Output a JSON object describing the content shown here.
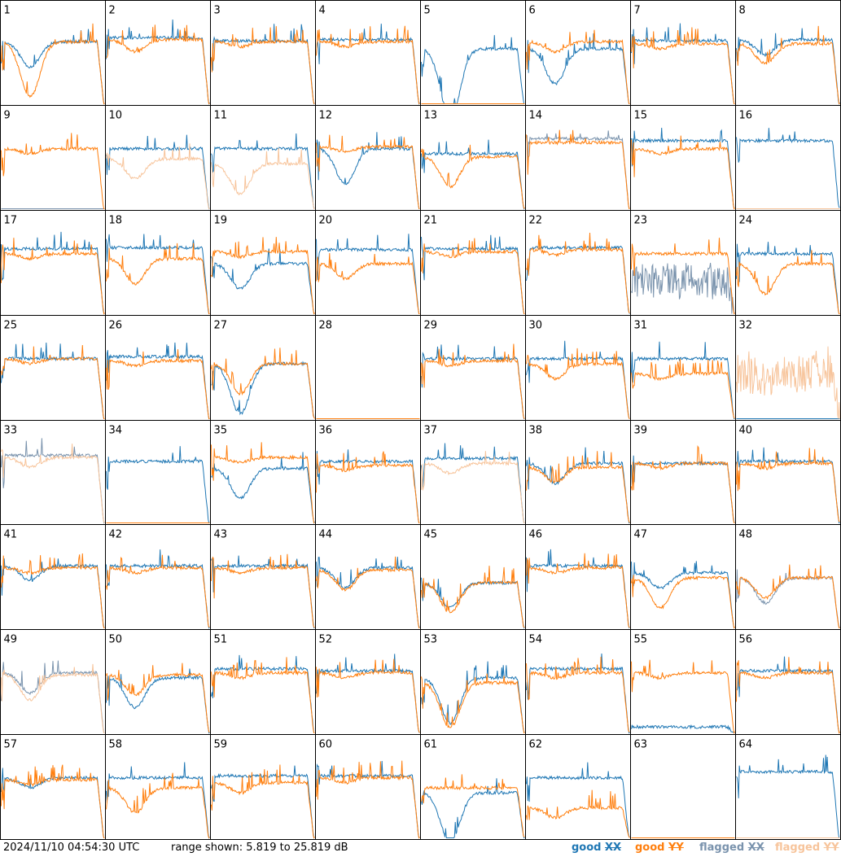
{
  "timestamp": "2024/11/10 04:54:30 UTC",
  "range_text": "range shown: 5.819 to 25.819 dB",
  "legend": [
    {
      "label": "good",
      "pol": "XX",
      "color": "#1f77b4"
    },
    {
      "label": "good",
      "pol": "YY",
      "color": "#ff7f0e"
    },
    {
      "label": "flagged",
      "pol": "XX",
      "color": "#7a93ad"
    },
    {
      "label": "flagged",
      "pol": "YY",
      "color": "#f7c49b"
    }
  ],
  "colors": {
    "good_xx": "#1f77b4",
    "good_yy": "#ff7f0e",
    "flagged_xx": "#7a93ad",
    "flagged_yy": "#f7c49b"
  },
  "chart_data": {
    "type": "line",
    "grid": {
      "rows": 8,
      "cols": 8
    },
    "y_range_db": [
      5.819,
      25.819
    ],
    "series_order": [
      "XX",
      "YY"
    ],
    "panels": [
      {
        "label": "1",
        "xx": {
          "level": 0.62,
          "state": "good",
          "dip": 0.25,
          "spikes": 1
        },
        "yy": {
          "level": 0.62,
          "state": "good",
          "dip": 0.55,
          "spikes": 1
        }
      },
      {
        "label": "2",
        "xx": {
          "level": 0.66,
          "state": "good",
          "dip": 0.0,
          "spikes": 1
        },
        "yy": {
          "level": 0.64,
          "state": "good",
          "dip": 0.12,
          "spikes": 2
        }
      },
      {
        "label": "3",
        "xx": {
          "level": 0.63,
          "state": "good",
          "dip": 0.0,
          "spikes": 1
        },
        "yy": {
          "level": 0.62,
          "state": "good",
          "dip": 0.05,
          "spikes": 2
        }
      },
      {
        "label": "4",
        "xx": {
          "level": 0.64,
          "state": "good",
          "dip": 0.0,
          "spikes": 1
        },
        "yy": {
          "level": 0.62,
          "state": "good",
          "dip": 0.05,
          "spikes": 2
        }
      },
      {
        "label": "5",
        "xx": {
          "level": 0.55,
          "state": "good",
          "dip": 0.7,
          "spikes": 3
        },
        "yy": {
          "level": 0.0,
          "state": "good",
          "dip": 0.0,
          "spikes": 0
        }
      },
      {
        "label": "6",
        "xx": {
          "level": 0.55,
          "state": "good",
          "dip": 0.35,
          "spikes": 3
        },
        "yy": {
          "level": 0.62,
          "state": "good",
          "dip": 0.1,
          "spikes": 1
        }
      },
      {
        "label": "7",
        "xx": {
          "level": 0.63,
          "state": "good",
          "dip": 0.0,
          "spikes": 1
        },
        "yy": {
          "level": 0.6,
          "state": "good",
          "dip": 0.05,
          "spikes": 2
        }
      },
      {
        "label": "8",
        "xx": {
          "level": 0.64,
          "state": "good",
          "dip": 0.15,
          "spikes": 1
        },
        "yy": {
          "level": 0.6,
          "state": "good",
          "dip": 0.2,
          "spikes": 2
        }
      },
      {
        "label": "9",
        "xx": {
          "level": 0.0,
          "state": "flagged",
          "dip": 0.0,
          "spikes": 0
        },
        "yy": {
          "level": 0.6,
          "state": "good",
          "dip": 0.05,
          "spikes": 2
        }
      },
      {
        "label": "10",
        "xx": {
          "level": 0.6,
          "state": "good",
          "dip": 0.0,
          "spikes": 1
        },
        "yy": {
          "level": 0.5,
          "state": "flagged",
          "dip": 0.2,
          "spikes": 2
        }
      },
      {
        "label": "11",
        "xx": {
          "level": 0.6,
          "state": "good",
          "dip": 0.0,
          "spikes": 1
        },
        "yy": {
          "level": 0.45,
          "state": "flagged",
          "dip": 0.3,
          "spikes": 3
        }
      },
      {
        "label": "12",
        "xx": {
          "level": 0.6,
          "state": "good",
          "dip": 0.35,
          "spikes": 1
        },
        "yy": {
          "level": 0.62,
          "state": "good",
          "dip": 0.05,
          "spikes": 2
        }
      },
      {
        "label": "13",
        "xx": {
          "level": 0.55,
          "state": "good",
          "dip": 0.0,
          "spikes": 1
        },
        "yy": {
          "level": 0.52,
          "state": "good",
          "dip": 0.3,
          "spikes": 1
        }
      },
      {
        "label": "14",
        "xx": {
          "level": 0.7,
          "state": "flagged",
          "dip": 0.0,
          "spikes": 1
        },
        "yy": {
          "level": 0.66,
          "state": "good",
          "dip": 0.0,
          "spikes": 2
        }
      },
      {
        "label": "15",
        "xx": {
          "level": 0.68,
          "state": "good",
          "dip": 0.0,
          "spikes": 1
        },
        "yy": {
          "level": 0.6,
          "state": "good",
          "dip": 0.05,
          "spikes": 2
        }
      },
      {
        "label": "16",
        "xx": {
          "level": 0.68,
          "state": "good",
          "dip": 0.0,
          "spikes": 1
        },
        "yy": {
          "level": 0.0,
          "state": "flagged",
          "dip": 0.0,
          "spikes": 0
        }
      },
      {
        "label": "17",
        "xx": {
          "level": 0.65,
          "state": "good",
          "dip": 0.0,
          "spikes": 1
        },
        "yy": {
          "level": 0.6,
          "state": "good",
          "dip": 0.05,
          "spikes": 2
        }
      },
      {
        "label": "18",
        "xx": {
          "level": 0.66,
          "state": "good",
          "dip": 0.0,
          "spikes": 1
        },
        "yy": {
          "level": 0.55,
          "state": "good",
          "dip": 0.25,
          "spikes": 2
        }
      },
      {
        "label": "19",
        "xx": {
          "level": 0.5,
          "state": "good",
          "dip": 0.25,
          "spikes": 1
        },
        "yy": {
          "level": 0.62,
          "state": "good",
          "dip": 0.05,
          "spikes": 2
        }
      },
      {
        "label": "20",
        "xx": {
          "level": 0.64,
          "state": "good",
          "dip": 0.0,
          "spikes": 1
        },
        "yy": {
          "level": 0.5,
          "state": "good",
          "dip": 0.15,
          "spikes": 2
        }
      },
      {
        "label": "21",
        "xx": {
          "level": 0.65,
          "state": "good",
          "dip": 0.0,
          "spikes": 1
        },
        "yy": {
          "level": 0.62,
          "state": "good",
          "dip": 0.05,
          "spikes": 2
        }
      },
      {
        "label": "22",
        "xx": {
          "level": 0.66,
          "state": "good",
          "dip": 0.0,
          "spikes": 1
        },
        "yy": {
          "level": 0.64,
          "state": "good",
          "dip": 0.05,
          "spikes": 2
        }
      },
      {
        "label": "23",
        "xx": {
          "level": 0.25,
          "state": "flagged",
          "dip": 0.0,
          "spikes": 4
        },
        "yy": {
          "level": 0.6,
          "state": "good",
          "dip": 0.0,
          "spikes": 2
        }
      },
      {
        "label": "24",
        "xx": {
          "level": 0.6,
          "state": "good",
          "dip": 0.0,
          "spikes": 1
        },
        "yy": {
          "level": 0.5,
          "state": "good",
          "dip": 0.3,
          "spikes": 2
        }
      },
      {
        "label": "25",
        "xx": {
          "level": 0.6,
          "state": "good",
          "dip": 0.0,
          "spikes": 1
        },
        "yy": {
          "level": 0.6,
          "state": "good",
          "dip": 0.05,
          "spikes": 2
        }
      },
      {
        "label": "26",
        "xx": {
          "level": 0.62,
          "state": "good",
          "dip": 0.0,
          "spikes": 1
        },
        "yy": {
          "level": 0.58,
          "state": "good",
          "dip": 0.05,
          "spikes": 2
        }
      },
      {
        "label": "27",
        "xx": {
          "level": 0.55,
          "state": "good",
          "dip": 0.5,
          "spikes": 1
        },
        "yy": {
          "level": 0.55,
          "state": "good",
          "dip": 0.3,
          "spikes": 2
        }
      },
      {
        "label": "28",
        "xx": {
          "level": 0.0,
          "state": "good",
          "dip": 0.0,
          "spikes": 0
        },
        "yy": {
          "level": 0.0,
          "state": "good",
          "dip": 0.0,
          "spikes": 1
        }
      },
      {
        "label": "29",
        "xx": {
          "level": 0.6,
          "state": "good",
          "dip": 0.0,
          "spikes": 1
        },
        "yy": {
          "level": 0.58,
          "state": "good",
          "dip": 0.05,
          "spikes": 2
        }
      },
      {
        "label": "30",
        "xx": {
          "level": 0.6,
          "state": "good",
          "dip": 0.0,
          "spikes": 1
        },
        "yy": {
          "level": 0.55,
          "state": "good",
          "dip": 0.15,
          "spikes": 2
        }
      },
      {
        "label": "31",
        "xx": {
          "level": 0.6,
          "state": "good",
          "dip": 0.0,
          "spikes": 1
        },
        "yy": {
          "level": 0.45,
          "state": "good",
          "dip": 0.05,
          "spikes": 3
        }
      },
      {
        "label": "32",
        "xx": {
          "level": 0.0,
          "state": "good",
          "dip": 0.0,
          "spikes": 0
        },
        "yy": {
          "level": 0.38,
          "state": "flagged",
          "dip": 0.05,
          "spikes": 3
        }
      },
      {
        "label": "33",
        "xx": {
          "level": 0.68,
          "state": "flagged",
          "dip": 0.0,
          "spikes": 1
        },
        "yy": {
          "level": 0.66,
          "state": "flagged",
          "dip": 0.1,
          "spikes": 1
        }
      },
      {
        "label": "34",
        "xx": {
          "level": 0.62,
          "state": "good",
          "dip": 0.0,
          "spikes": 1
        },
        "yy": {
          "level": 0.0,
          "state": "good",
          "dip": 0.0,
          "spikes": 1
        }
      },
      {
        "label": "35",
        "xx": {
          "level": 0.55,
          "state": "good",
          "dip": 0.3,
          "spikes": 2
        },
        "yy": {
          "level": 0.66,
          "state": "good",
          "dip": 0.05,
          "spikes": 1
        }
      },
      {
        "label": "36",
        "xx": {
          "level": 0.62,
          "state": "good",
          "dip": 0.0,
          "spikes": 1
        },
        "yy": {
          "level": 0.58,
          "state": "good",
          "dip": 0.05,
          "spikes": 2
        }
      },
      {
        "label": "37",
        "xx": {
          "level": 0.65,
          "state": "good",
          "dip": 0.0,
          "spikes": 1
        },
        "yy": {
          "level": 0.6,
          "state": "flagged",
          "dip": 0.1,
          "spikes": 2
        }
      },
      {
        "label": "38",
        "xx": {
          "level": 0.6,
          "state": "good",
          "dip": 0.2,
          "spikes": 1
        },
        "yy": {
          "level": 0.56,
          "state": "good",
          "dip": 0.15,
          "spikes": 2
        }
      },
      {
        "label": "39",
        "xx": {
          "level": 0.6,
          "state": "good",
          "dip": 0.0,
          "spikes": 0
        },
        "yy": {
          "level": 0.6,
          "state": "good",
          "dip": 0.05,
          "spikes": 2
        }
      },
      {
        "label": "40",
        "xx": {
          "level": 0.62,
          "state": "good",
          "dip": 0.0,
          "spikes": 1
        },
        "yy": {
          "level": 0.6,
          "state": "good",
          "dip": 0.05,
          "spikes": 2
        }
      },
      {
        "label": "41",
        "xx": {
          "level": 0.62,
          "state": "good",
          "dip": 0.15,
          "spikes": 1
        },
        "yy": {
          "level": 0.6,
          "state": "good",
          "dip": 0.05,
          "spikes": 2
        }
      },
      {
        "label": "42",
        "xx": {
          "level": 0.62,
          "state": "good",
          "dip": 0.0,
          "spikes": 1
        },
        "yy": {
          "level": 0.6,
          "state": "good",
          "dip": 0.05,
          "spikes": 2
        }
      },
      {
        "label": "43",
        "xx": {
          "level": 0.62,
          "state": "good",
          "dip": 0.0,
          "spikes": 1
        },
        "yy": {
          "level": 0.6,
          "state": "good",
          "dip": 0.05,
          "spikes": 2
        }
      },
      {
        "label": "44",
        "xx": {
          "level": 0.6,
          "state": "good",
          "dip": 0.2,
          "spikes": 1
        },
        "yy": {
          "level": 0.58,
          "state": "good",
          "dip": 0.2,
          "spikes": 1
        }
      },
      {
        "label": "45",
        "xx": {
          "level": 0.45,
          "state": "good",
          "dip": 0.25,
          "spikes": 2
        },
        "yy": {
          "level": 0.45,
          "state": "good",
          "dip": 0.3,
          "spikes": 3
        }
      },
      {
        "label": "46",
        "xx": {
          "level": 0.62,
          "state": "good",
          "dip": 0.0,
          "spikes": 1
        },
        "yy": {
          "level": 0.6,
          "state": "good",
          "dip": 0.05,
          "spikes": 2
        }
      },
      {
        "label": "47",
        "xx": {
          "level": 0.55,
          "state": "good",
          "dip": 0.15,
          "spikes": 1
        },
        "yy": {
          "level": 0.5,
          "state": "good",
          "dip": 0.3,
          "spikes": 1
        }
      },
      {
        "label": "48",
        "xx": {
          "level": 0.5,
          "state": "flagged",
          "dip": 0.25,
          "spikes": 1
        },
        "yy": {
          "level": 0.5,
          "state": "good",
          "dip": 0.2,
          "spikes": 3
        }
      },
      {
        "label": "49",
        "xx": {
          "level": 0.6,
          "state": "flagged",
          "dip": 0.2,
          "spikes": 1
        },
        "yy": {
          "level": 0.58,
          "state": "flagged",
          "dip": 0.25,
          "spikes": 2
        }
      },
      {
        "label": "50",
        "xx": {
          "level": 0.55,
          "state": "good",
          "dip": 0.3,
          "spikes": 1
        },
        "yy": {
          "level": 0.58,
          "state": "good",
          "dip": 0.2,
          "spikes": 2
        }
      },
      {
        "label": "51",
        "xx": {
          "level": 0.64,
          "state": "good",
          "dip": 0.0,
          "spikes": 1
        },
        "yy": {
          "level": 0.6,
          "state": "good",
          "dip": 0.05,
          "spikes": 2
        }
      },
      {
        "label": "52",
        "xx": {
          "level": 0.62,
          "state": "good",
          "dip": 0.0,
          "spikes": 1
        },
        "yy": {
          "level": 0.6,
          "state": "good",
          "dip": 0.05,
          "spikes": 2
        }
      },
      {
        "label": "53",
        "xx": {
          "level": 0.55,
          "state": "good",
          "dip": 0.45,
          "spikes": 2
        },
        "yy": {
          "level": 0.5,
          "state": "good",
          "dip": 0.45,
          "spikes": 2
        }
      },
      {
        "label": "54",
        "xx": {
          "level": 0.64,
          "state": "good",
          "dip": 0.0,
          "spikes": 1
        },
        "yy": {
          "level": 0.6,
          "state": "good",
          "dip": 0.05,
          "spikes": 2
        }
      },
      {
        "label": "55",
        "xx": {
          "level": 0.06,
          "state": "good",
          "dip": 0.0,
          "spikes": 0
        },
        "yy": {
          "level": 0.6,
          "state": "good",
          "dip": 0.05,
          "spikes": 2
        }
      },
      {
        "label": "56",
        "xx": {
          "level": 0.62,
          "state": "good",
          "dip": 0.0,
          "spikes": 1
        },
        "yy": {
          "level": 0.6,
          "state": "good",
          "dip": 0.05,
          "spikes": 2
        }
      },
      {
        "label": "57",
        "xx": {
          "level": 0.6,
          "state": "good",
          "dip": 0.1,
          "spikes": 1
        },
        "yy": {
          "level": 0.58,
          "state": "good",
          "dip": 0.05,
          "spikes": 2
        }
      },
      {
        "label": "58",
        "xx": {
          "level": 0.6,
          "state": "good",
          "dip": 0.0,
          "spikes": 1
        },
        "yy": {
          "level": 0.5,
          "state": "good",
          "dip": 0.25,
          "spikes": 3
        }
      },
      {
        "label": "59",
        "xx": {
          "level": 0.62,
          "state": "good",
          "dip": 0.0,
          "spikes": 1
        },
        "yy": {
          "level": 0.55,
          "state": "good",
          "dip": 0.1,
          "spikes": 3
        }
      },
      {
        "label": "60",
        "xx": {
          "level": 0.62,
          "state": "good",
          "dip": 0.0,
          "spikes": 1
        },
        "yy": {
          "level": 0.6,
          "state": "good",
          "dip": 0.05,
          "spikes": 2
        }
      },
      {
        "label": "61",
        "xx": {
          "level": 0.45,
          "state": "good",
          "dip": 0.5,
          "spikes": 1
        },
        "yy": {
          "level": 0.5,
          "state": "good",
          "dip": 0.0,
          "spikes": 3
        }
      },
      {
        "label": "62",
        "xx": {
          "level": 0.6,
          "state": "good",
          "dip": 0.0,
          "spikes": 1
        },
        "yy": {
          "level": 0.3,
          "state": "good",
          "dip": 0.1,
          "spikes": 3
        }
      },
      {
        "label": "63",
        "xx": {
          "level": 0.0,
          "state": "good",
          "dip": 0.0,
          "spikes": 0
        },
        "yy": {
          "level": 0.0,
          "state": "good",
          "dip": 0.0,
          "spikes": 0
        }
      },
      {
        "label": "64",
        "xx": {
          "level": 0.66,
          "state": "good",
          "dip": 0.0,
          "spikes": 1
        },
        "yy": {
          "level": 0.0,
          "state": "flagged",
          "dip": 0.0,
          "spikes": 0
        }
      }
    ]
  }
}
